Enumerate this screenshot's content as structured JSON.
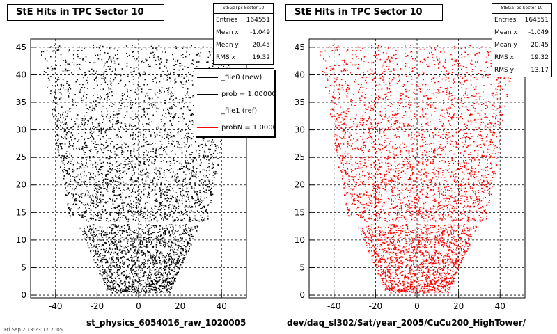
{
  "footnote": "Fri Sep 2 13:23:17 2005",
  "chart_data": [
    {
      "type": "scatter",
      "title": "StE Hits in TPC Sector 10",
      "xlabel": "st_physics_6054016_raw_1020005",
      "ylabel": "",
      "xlim": [
        -52,
        52
      ],
      "ylim": [
        -0.5,
        46.5
      ],
      "grid": true,
      "marker_color": "#000000",
      "x_ticks": [
        -40,
        -20,
        0,
        20,
        40
      ],
      "x_tick_labels": [
        "-40",
        "-20",
        "0",
        "20",
        "40"
      ],
      "y_ticks": [
        0,
        5,
        10,
        15,
        20,
        25,
        30,
        35,
        40,
        45
      ],
      "y_tick_labels": [
        "0",
        "5",
        "10",
        "15",
        "20",
        "25",
        "30",
        "35",
        "40",
        "45"
      ],
      "density_boundary": [
        {
          "y": 0.5,
          "xmin": -15,
          "xmax": 15
        },
        {
          "y": 12.5,
          "xmin": -29,
          "xmax": 29
        },
        {
          "y": 13.5,
          "xmin": -33,
          "xmax": 33
        },
        {
          "y": 25,
          "xmin": -39,
          "xmax": 39
        },
        {
          "y": 35,
          "xmin": -43,
          "xmax": 43
        },
        {
          "y": 45.5,
          "xmin": -48,
          "xmax": 48
        }
      ],
      "stats": {
        "title": "StEGaTpc Sector 10",
        "rows": [
          {
            "label": "Entries",
            "value": "164551"
          },
          {
            "label": "Mean x",
            "value": "-1.049"
          },
          {
            "label": "Mean y",
            "value": "20.45"
          },
          {
            "label": "RMS x",
            "value": "19.32"
          }
        ]
      },
      "legend": [
        {
          "label": "_file0 (new)",
          "color": "#000000"
        },
        {
          "label": "prob = 1.000000",
          "color": "#000000"
        },
        {
          "label": "_file1 (ref)",
          "color": "#ff0000"
        },
        {
          "label": "probN = 1.000000",
          "color": "#ff0000"
        }
      ]
    },
    {
      "type": "scatter",
      "title": "StE Hits in TPC Sector 10",
      "xlabel": "dev/daq_sl302/Sat/year_2005/CuCu200_HighTower/",
      "ylabel": "",
      "xlim": [
        -52,
        52
      ],
      "ylim": [
        -0.5,
        46.5
      ],
      "grid": true,
      "marker_color": "#ff0000",
      "x_ticks": [
        -40,
        -20,
        0,
        20,
        40
      ],
      "x_tick_labels": [
        "-40",
        "-20",
        "0",
        "20",
        "40"
      ],
      "y_ticks": [
        0,
        5,
        10,
        15,
        20,
        25,
        30,
        35,
        40,
        45
      ],
      "y_tick_labels": [
        "0",
        "5",
        "10",
        "15",
        "20",
        "25",
        "30",
        "35",
        "40",
        "45"
      ],
      "density_boundary": [
        {
          "y": 0.5,
          "xmin": -15,
          "xmax": 15
        },
        {
          "y": 12.5,
          "xmin": -29,
          "xmax": 29
        },
        {
          "y": 13.5,
          "xmin": -33,
          "xmax": 33
        },
        {
          "y": 25,
          "xmin": -39,
          "xmax": 39
        },
        {
          "y": 35,
          "xmin": -43,
          "xmax": 43
        },
        {
          "y": 45.5,
          "xmin": -48,
          "xmax": 48
        }
      ],
      "stats": {
        "title": "StEGaTpc Sector 10",
        "rows": [
          {
            "label": "Entries",
            "value": "164551"
          },
          {
            "label": "Mean x",
            "value": "-1.049"
          },
          {
            "label": "Mean y",
            "value": "20.45"
          },
          {
            "label": "RMS x",
            "value": "19.32"
          },
          {
            "label": "RMS y",
            "value": "13.17"
          }
        ]
      }
    }
  ]
}
